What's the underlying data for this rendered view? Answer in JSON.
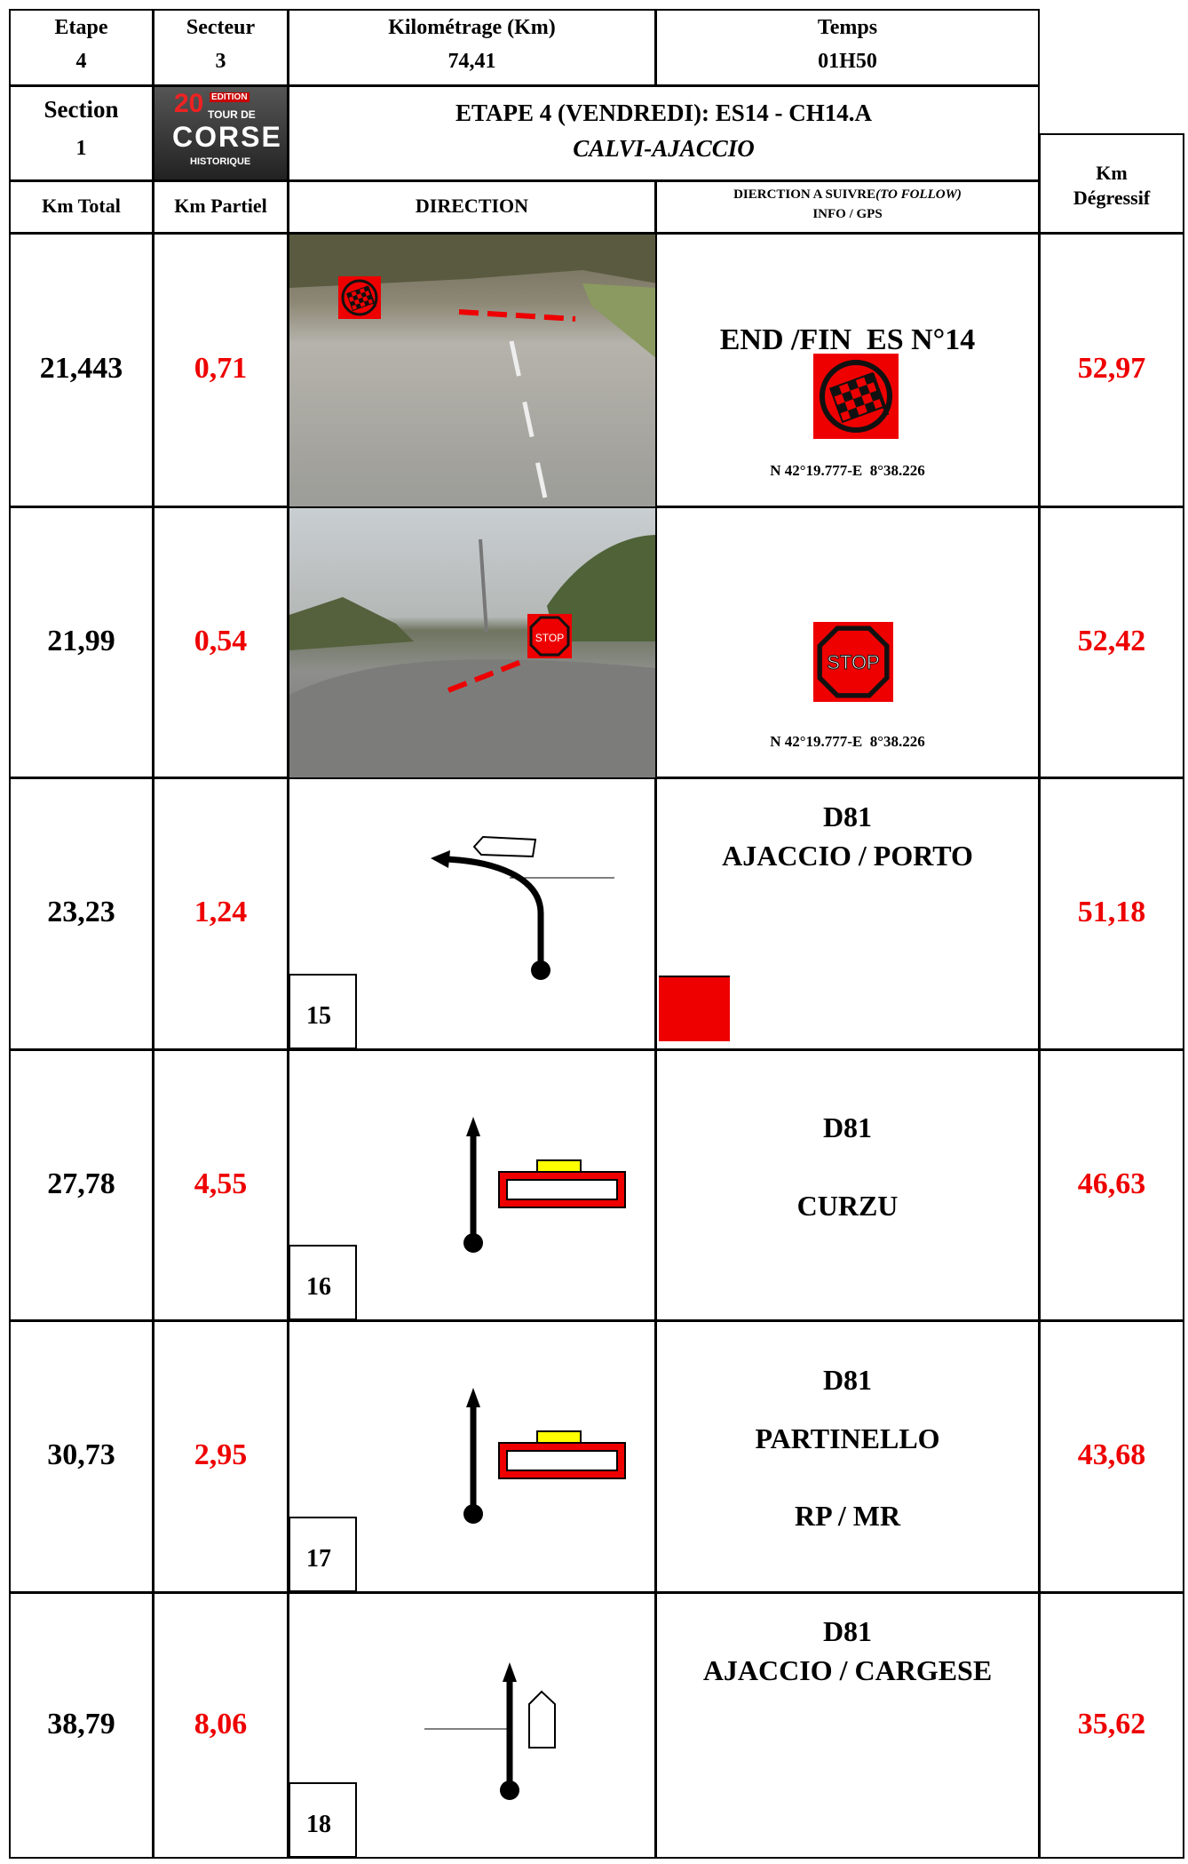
{
  "header": {
    "etape_label": "Etape",
    "etape": "4",
    "secteur_label": "Secteur",
    "secteur": "3",
    "km_label": "Kilométrage (Km)",
    "km": "74,41",
    "temps_label": "Temps",
    "temps": "01H50",
    "section_label": "Section",
    "section": "1",
    "title": "ETAPE 4 (VENDREDI): ES14 - CH14.A",
    "subtitle": "CALVI-AJACCIO"
  },
  "logo": {
    "number": "20",
    "edition": "EDITION",
    "line1": "TOUR DE",
    "line2": "CORSE",
    "line3": "HISTORIQUE"
  },
  "columns": {
    "km_total": "Km Total",
    "km_partiel": "Km Partiel",
    "direction": "DIRECTION",
    "info": "DIERCTION A SUIVRE",
    "info_italic": "(TO FOLLOW)",
    "info2": "INFO / GPS",
    "km_degressif_1": "Km",
    "km_degressif_2": "Dégressif"
  },
  "sign_text": "STOP",
  "rows": [
    {
      "km_total": "21,443",
      "km_partiel": "0,71",
      "info": [
        "END /FIN  ES N°14"
      ],
      "gps": "N 42°19.777-E  8°38.226",
      "km_degressif": "52,97"
    },
    {
      "km_total": "21,99",
      "km_partiel": "0,54",
      "info": [],
      "gps": "N 42°19.777-E  8°38.226",
      "km_degressif": "52,42"
    },
    {
      "km_total": "23,23",
      "km_partiel": "1,24",
      "box": "15",
      "info": [
        "D81",
        "AJACCIO / PORTO"
      ],
      "km_degressif": "51,18"
    },
    {
      "km_total": "27,78",
      "km_partiel": "4,55",
      "box": "16",
      "info": [
        "D81",
        "CURZU"
      ],
      "km_degressif": "46,63"
    },
    {
      "km_total": "30,73",
      "km_partiel": "2,95",
      "box": "17",
      "info": [
        "D81",
        "PARTINELLO",
        "RP / MR"
      ],
      "km_degressif": "43,68"
    },
    {
      "km_total": "38,79",
      "km_partiel": "8,06",
      "box": "18",
      "info": [
        "D81",
        "AJACCIO / CARGESE"
      ],
      "km_degressif": "35,62"
    }
  ]
}
